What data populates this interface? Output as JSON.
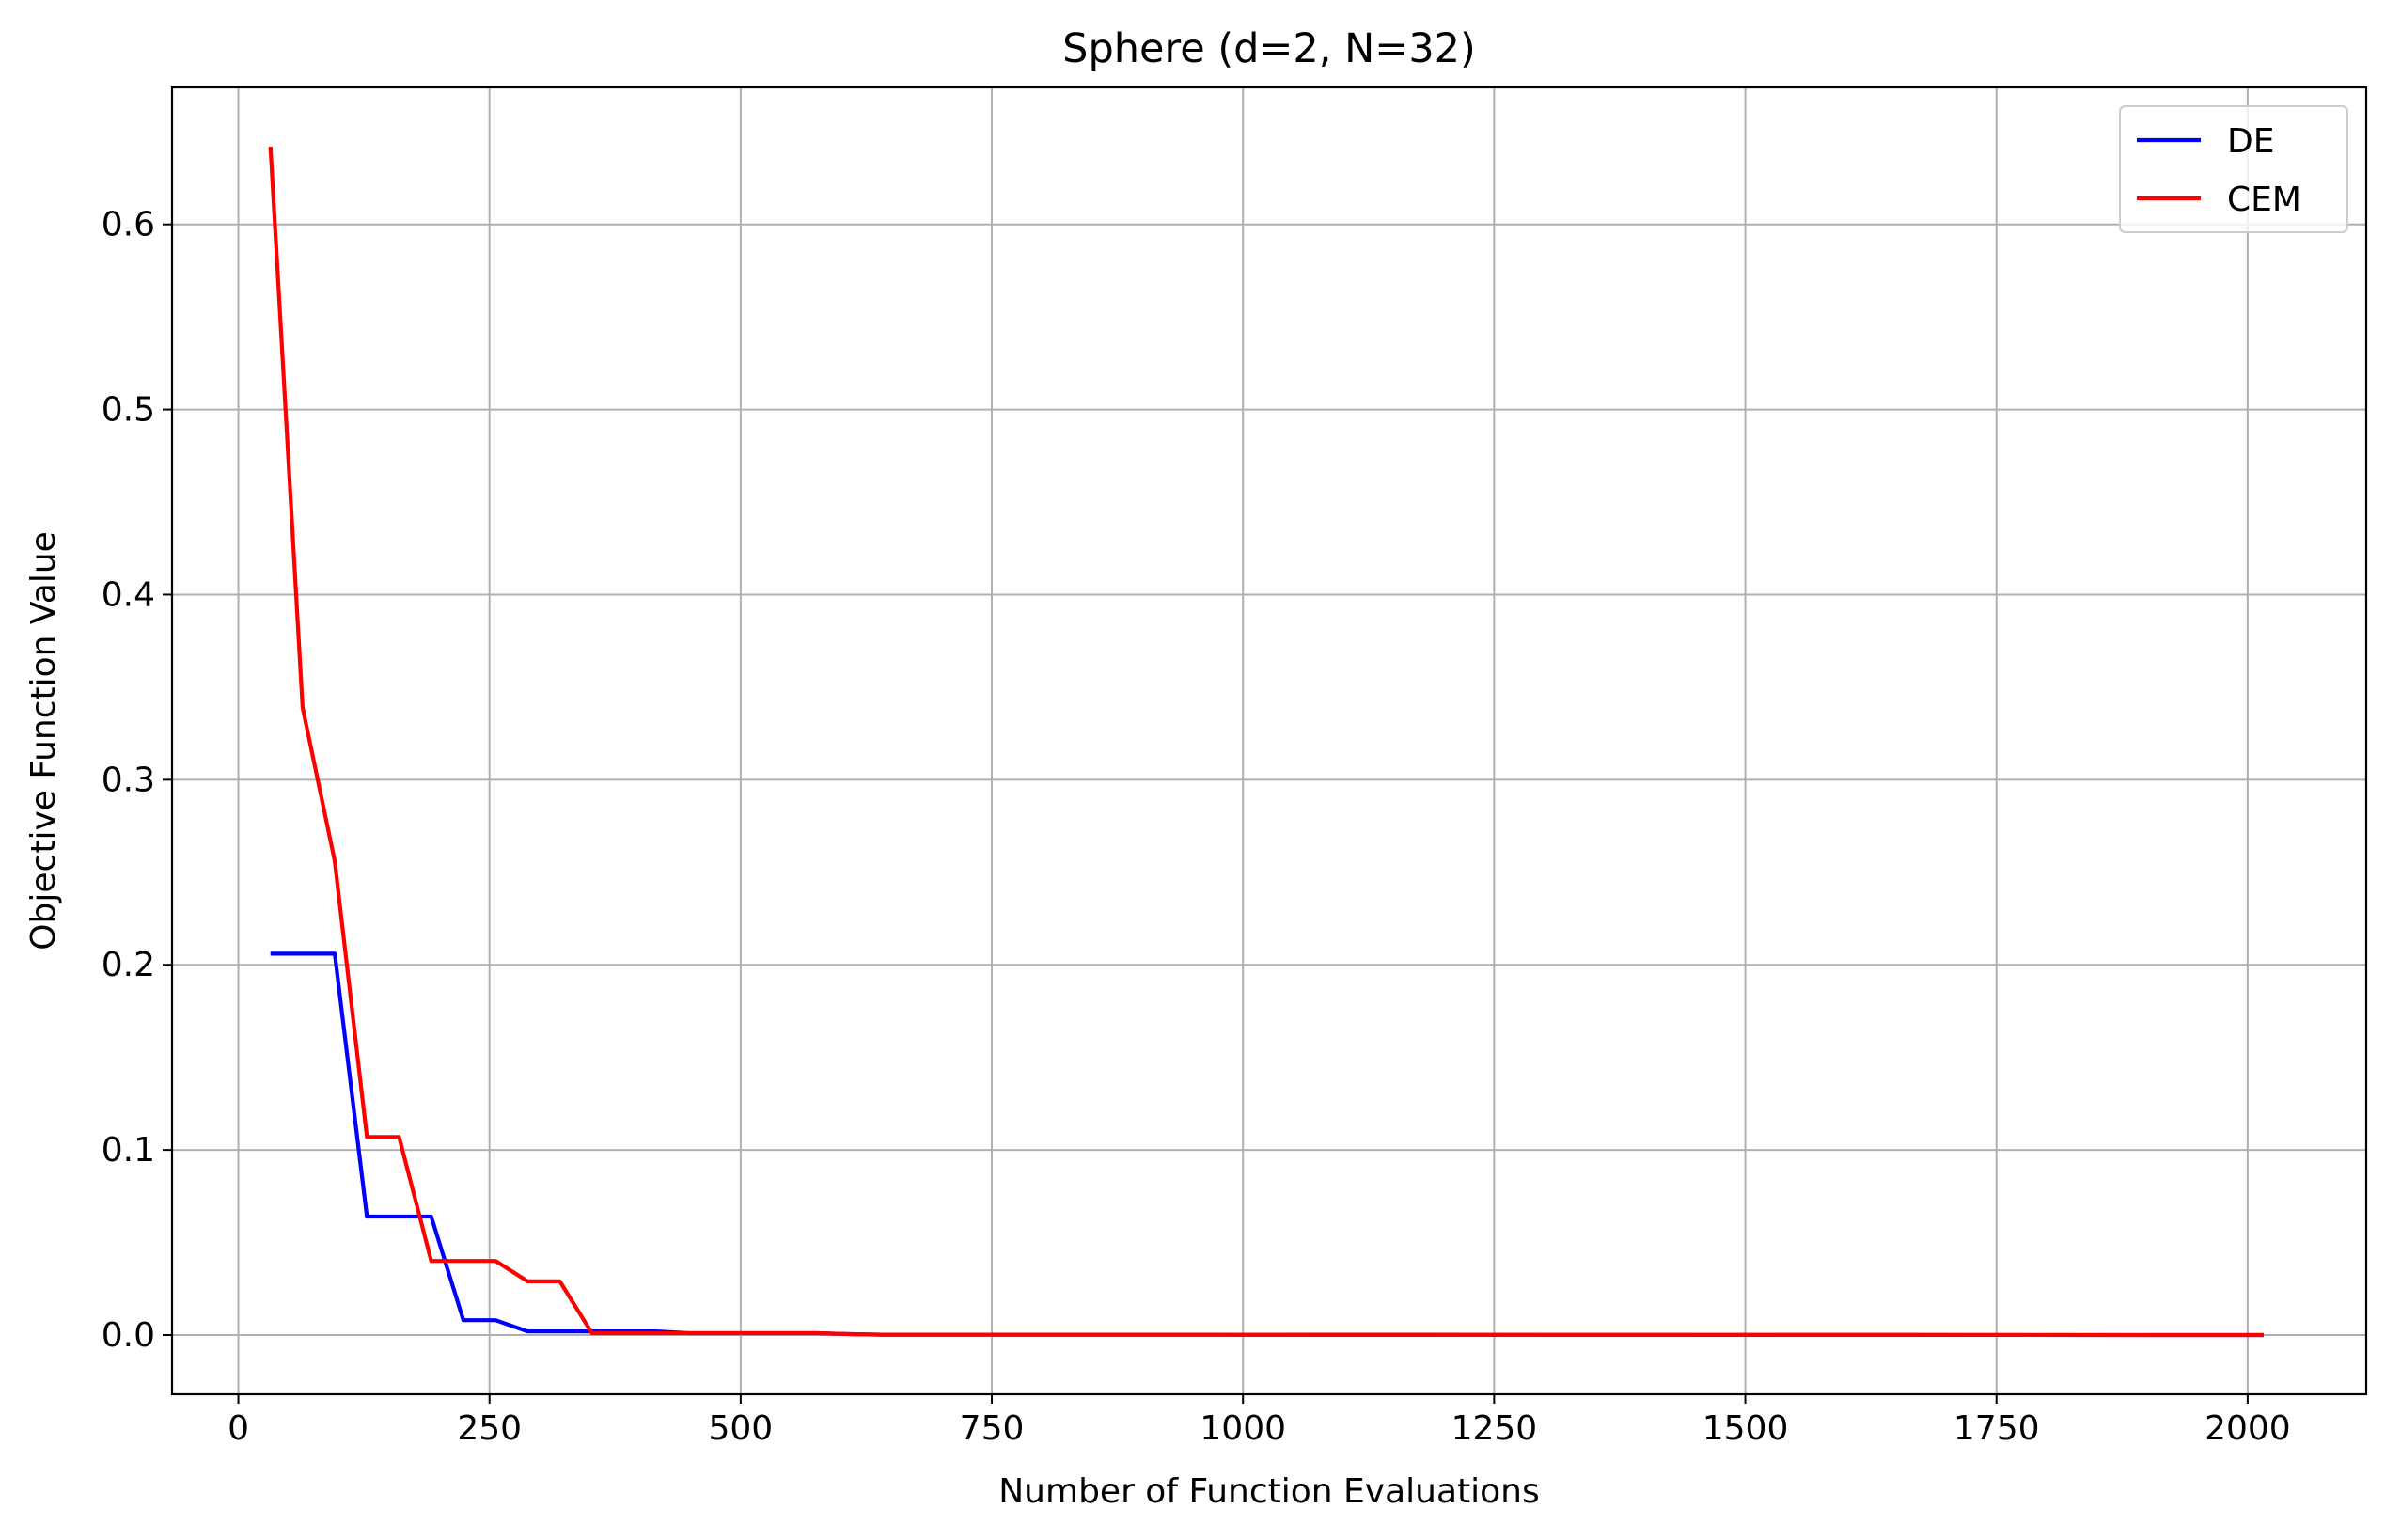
{
  "chart_data": {
    "type": "line",
    "title": "Sphere (d=2, N=32)",
    "xlabel": "Number of Function Evaluations",
    "ylabel": "Objective Function Value",
    "xlim": [
      -66,
      2118
    ],
    "ylim": [
      -0.032,
      0.674
    ],
    "xticks": [
      0,
      250,
      500,
      750,
      1000,
      1250,
      1500,
      1750,
      2000
    ],
    "xtick_labels": [
      "0",
      "250",
      "500",
      "750",
      "1000",
      "1250",
      "1500",
      "1750",
      "2000"
    ],
    "yticks": [
      0.0,
      0.1,
      0.2,
      0.3,
      0.4,
      0.5,
      0.6
    ],
    "ytick_labels": [
      "0.0",
      "0.1",
      "0.2",
      "0.3",
      "0.4",
      "0.5",
      "0.6"
    ],
    "grid": true,
    "legend_position": "top-right",
    "series": [
      {
        "name": "DE",
        "color": "#0000ff",
        "x": [
          32,
          64,
          96,
          128,
          160,
          192,
          224,
          256,
          288,
          320,
          352,
          384,
          416,
          448,
          480,
          512,
          544,
          576,
          608,
          640,
          2016
        ],
        "y": [
          0.206,
          0.206,
          0.206,
          0.064,
          0.064,
          0.064,
          0.008,
          0.008,
          0.002,
          0.002,
          0.002,
          0.002,
          0.002,
          0.001,
          0.001,
          0.001,
          0.001,
          0.001,
          0.0005,
          0.0002,
          0.0
        ]
      },
      {
        "name": "CEM",
        "color": "#ff0000",
        "x": [
          32,
          64,
          96,
          128,
          160,
          192,
          224,
          256,
          288,
          320,
          352,
          384,
          416,
          448,
          480,
          512,
          544,
          576,
          608,
          640,
          2016
        ],
        "y": [
          0.642,
          0.339,
          0.256,
          0.107,
          0.107,
          0.04,
          0.04,
          0.04,
          0.029,
          0.029,
          0.001,
          0.001,
          0.001,
          0.001,
          0.001,
          0.001,
          0.001,
          0.001,
          0.0005,
          0.0002,
          0.0
        ]
      }
    ]
  }
}
